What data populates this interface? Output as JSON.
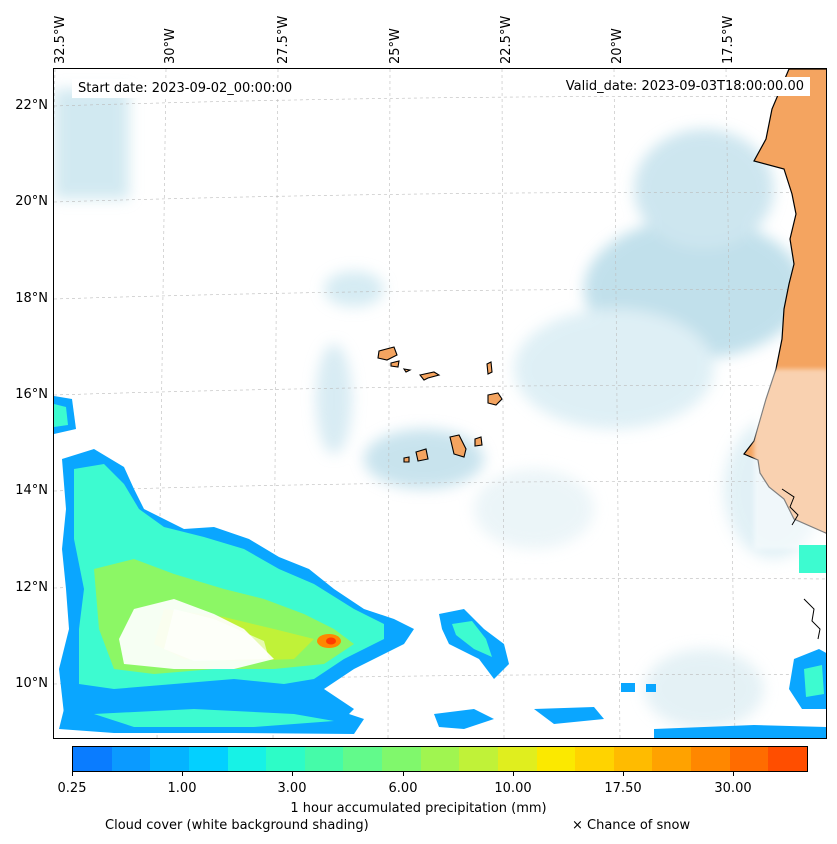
{
  "map": {
    "start_date": "Start date: 2023-09-02_00:00:00",
    "valid_date": "Valid_date: 2023-09-03T18:00:00.00",
    "longitude_labels": [
      "32.5°W",
      "30°W",
      "27.5°W",
      "25°W",
      "22.5°W",
      "20°W",
      "17.5°W"
    ],
    "latitude_labels": [
      "22°N",
      "20°N",
      "18°N",
      "16°N",
      "14°N",
      "12°N",
      "10°N"
    ],
    "colors": {
      "land": "#f4a460",
      "cloud": "#add8e6",
      "coast": "#000000"
    }
  },
  "colorbar": {
    "ticks": [
      "0.25",
      "1.00",
      "3.00",
      "6.00",
      "10.00",
      "17.50",
      "30.00"
    ],
    "colors": [
      "#0a7cff",
      "#0b9aff",
      "#05b4ff",
      "#03d0ff",
      "#17f2e6",
      "#2dfcc7",
      "#45fba9",
      "#62fa8b",
      "#80f86c",
      "#a0f550",
      "#c0f238",
      "#e0ee1e",
      "#fbe900",
      "#ffd300",
      "#ffbb00",
      "#ffa200",
      "#ff8700",
      "#ff6c00",
      "#ff4e00"
    ],
    "label": "1 hour accumulated precipitation (mm)"
  },
  "footer": {
    "cloud_note": "Cloud cover (white background shading)",
    "snow_note": "× Chance of snow"
  }
}
